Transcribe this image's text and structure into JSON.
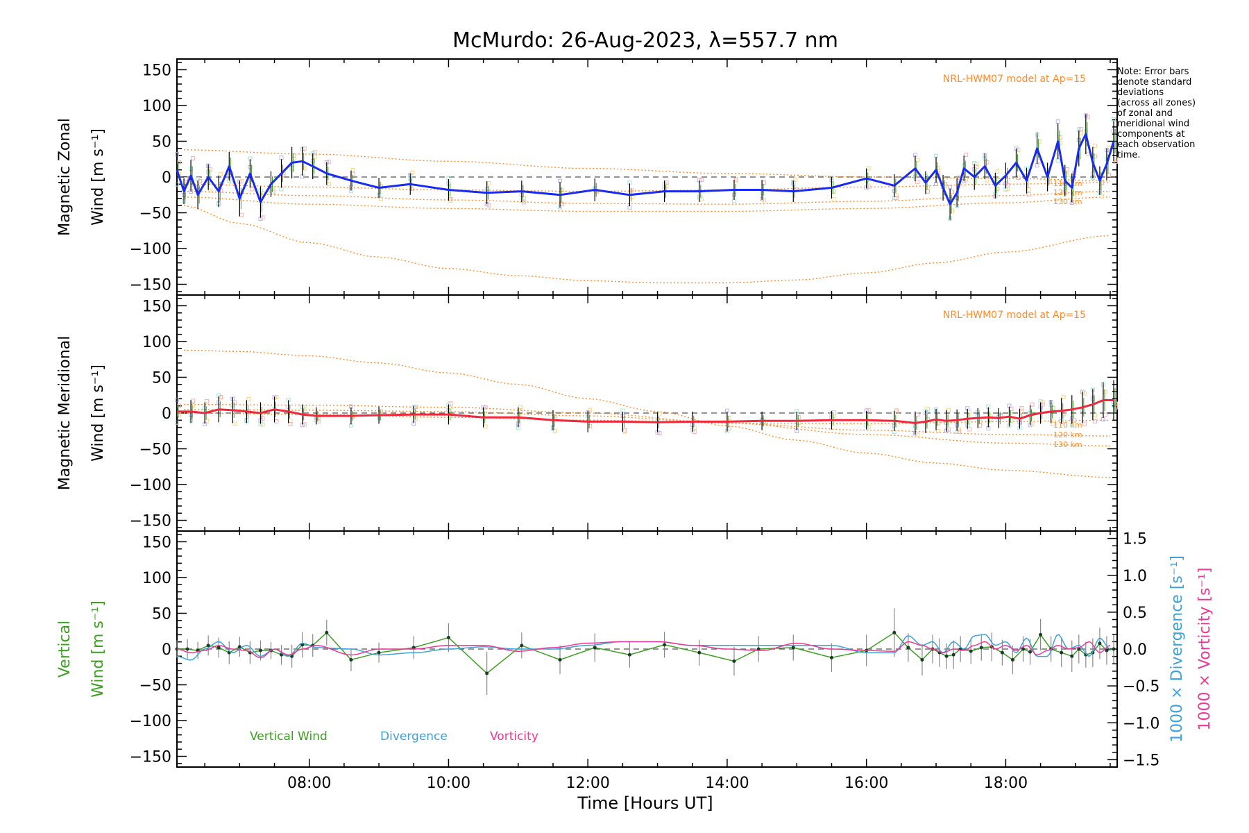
{
  "chart_data": {
    "type": "line",
    "title": "McMurdo: 26-Aug-2023, λ=557.7 nm",
    "xlabel": "Time [Hours UT]",
    "xlim": [
      6.1,
      19.6
    ],
    "x_ticks": [
      8,
      10,
      12,
      14,
      16,
      18
    ],
    "x_tick_labels": [
      "08:00",
      "10:00",
      "12:00",
      "14:00",
      "16:00",
      "18:00"
    ],
    "y_ticks": [
      -150,
      -100,
      -50,
      0,
      50,
      100,
      150
    ],
    "y_tick_labels": [
      "−150",
      "−100",
      "−50",
      "0",
      "50",
      "100",
      "150"
    ],
    "note_lines": [
      "Note: Error bars",
      "denote standard",
      "deviations",
      "(across all zones)",
      "of zonal and",
      "meridional wind",
      "components at",
      "each observation",
      "time."
    ],
    "model_label": "NRL-HWM07 model at Ap=15",
    "model_alt_labels": [
      "110 km",
      "120 km",
      "130 km"
    ],
    "panels": [
      {
        "id": "zonal",
        "ylabel_line1": "Magnetic Zonal",
        "ylabel_line2": "Wind [m s⁻¹]",
        "ylim": [
          -165,
          165
        ],
        "color": "#1a2bf0",
        "times": [
          6.1,
          6.2,
          6.3,
          6.4,
          6.55,
          6.7,
          6.85,
          7.0,
          7.15,
          7.3,
          7.45,
          7.6,
          7.75,
          7.9,
          8.05,
          8.25,
          8.6,
          9.0,
          9.45,
          10.0,
          10.55,
          11.05,
          11.6,
          12.1,
          12.6,
          13.1,
          13.6,
          14.1,
          14.5,
          14.95,
          15.5,
          16.0,
          16.4,
          16.7,
          16.85,
          17.0,
          17.1,
          17.2,
          17.3,
          17.4,
          17.55,
          17.7,
          17.85,
          18.0,
          18.15,
          18.3,
          18.45,
          18.6,
          18.75,
          18.85,
          18.95,
          19.05,
          19.15,
          19.25,
          19.35,
          19.45,
          19.55
        ],
        "values": [
          10,
          -20,
          2,
          -25,
          0,
          -20,
          15,
          -30,
          5,
          -35,
          -10,
          5,
          20,
          22,
          15,
          5,
          -5,
          -15,
          -10,
          -18,
          -22,
          -20,
          -25,
          -18,
          -25,
          -20,
          -20,
          -18,
          -18,
          -20,
          -15,
          -2,
          -12,
          12,
          -8,
          10,
          -15,
          -38,
          -22,
          12,
          0,
          15,
          -12,
          2,
          20,
          -5,
          40,
          0,
          50,
          -5,
          -15,
          40,
          60,
          20,
          -5,
          18,
          50
        ],
        "error_bars": [
          20,
          18,
          22,
          20,
          18,
          22,
          20,
          25,
          20,
          22,
          18,
          20,
          22,
          20,
          18,
          16,
          14,
          14,
          15,
          15,
          16,
          15,
          18,
          16,
          16,
          15,
          15,
          14,
          14,
          15,
          15,
          14,
          16,
          18,
          16,
          18,
          18,
          22,
          20,
          18,
          18,
          18,
          18,
          18,
          20,
          18,
          22,
          20,
          25,
          22,
          20,
          25,
          28,
          22,
          20,
          22,
          28
        ],
        "model_curves": [
          {
            "label": "110 km",
            "times": [
              6.2,
              8,
              10,
              12,
              14,
              16,
              18,
              19.5
            ],
            "values": [
              -10,
              -14,
              -18,
              -20,
              -18,
              -14,
              -10,
              -8
            ]
          },
          {
            "label": "120 km",
            "times": [
              6.2,
              8,
              10,
              12,
              14,
              16,
              18,
              19.5
            ],
            "values": [
              -20,
              -26,
              -32,
              -37,
              -38,
              -34,
              -26,
              -20
            ]
          },
          {
            "label": "130 km",
            "times": [
              6.2,
              8,
              10,
              12,
              14,
              16,
              18,
              19.5
            ],
            "values": [
              -28,
              -38,
              -44,
              -48,
              -48,
              -44,
              -36,
              -28
            ]
          },
          {
            "label": "",
            "times": [
              6.2,
              7,
              8,
              9,
              10,
              11,
              12,
              13,
              14,
              15,
              16,
              17,
              18,
              19.5
            ],
            "values": [
              -40,
              -65,
              -92,
              -112,
              -128,
              -138,
              -145,
              -148,
              -148,
              -144,
              -134,
              -120,
              -105,
              -82
            ]
          },
          {
            "label": "",
            "times": [
              6.2,
              8,
              10,
              12,
              14,
              16,
              18,
              19.5
            ],
            "values": [
              38,
              32,
              22,
              12,
              5,
              0,
              -2,
              -5
            ]
          }
        ]
      },
      {
        "id": "meridional",
        "ylabel_line1": "Magnetic Meridional",
        "ylabel_line2": "Wind [m s⁻¹]",
        "ylim": [
          -165,
          165
        ],
        "color": "#f0283c",
        "times": [
          6.1,
          6.3,
          6.5,
          6.7,
          6.9,
          7.1,
          7.3,
          7.5,
          7.7,
          7.9,
          8.1,
          8.6,
          9.0,
          9.5,
          10.0,
          10.5,
          11.0,
          11.5,
          12.0,
          12.5,
          13.0,
          13.5,
          14.0,
          14.5,
          15.0,
          15.5,
          16.0,
          16.4,
          16.7,
          16.85,
          17.0,
          17.15,
          17.3,
          17.45,
          17.6,
          17.75,
          17.9,
          18.05,
          18.2,
          18.35,
          18.5,
          18.65,
          18.8,
          18.95,
          19.1,
          19.25,
          19.4,
          19.55
        ],
        "values": [
          2,
          2,
          0,
          5,
          4,
          2,
          0,
          5,
          2,
          -2,
          -4,
          -4,
          -3,
          -2,
          -2,
          -6,
          -6,
          -10,
          -12,
          -12,
          -13,
          -12,
          -12,
          -11,
          -11,
          -10,
          -10,
          -11,
          -14,
          -12,
          -9,
          -11,
          -10,
          -8,
          -7,
          -6,
          -7,
          -5,
          -8,
          -3,
          0,
          2,
          3,
          5,
          8,
          12,
          18,
          18
        ],
        "error_bars": [
          15,
          16,
          15,
          18,
          18,
          16,
          15,
          18,
          16,
          14,
          12,
          12,
          12,
          12,
          14,
          14,
          14,
          14,
          15,
          14,
          14,
          14,
          14,
          13,
          13,
          13,
          13,
          14,
          16,
          16,
          15,
          15,
          15,
          14,
          14,
          14,
          14,
          14,
          14,
          14,
          15,
          16,
          18,
          20,
          22,
          22,
          25,
          28
        ],
        "model_curves": [
          {
            "label": "110 km",
            "times": [
              6.2,
              8,
              10,
              12,
              14,
              16,
              18,
              19.5
            ],
            "values": [
              0,
              -2,
              -6,
              -10,
              -14,
              -15,
              -12,
              -10
            ]
          },
          {
            "label": "120 km",
            "times": [
              6.2,
              8,
              10,
              12,
              14,
              16,
              18,
              19.5
            ],
            "values": [
              5,
              4,
              2,
              -4,
              -14,
              -24,
              -30,
              -32
            ]
          },
          {
            "label": "130 km",
            "times": [
              6.2,
              8,
              10,
              12,
              14,
              16,
              18,
              19.5
            ],
            "values": [
              12,
              11,
              8,
              0,
              -14,
              -30,
              -42,
              -46
            ]
          },
          {
            "label": "",
            "times": [
              6.2,
              7,
              8,
              9,
              10,
              11,
              12,
              13,
              14,
              15,
              16,
              17,
              18,
              19.5
            ],
            "values": [
              88,
              86,
              80,
              70,
              56,
              40,
              20,
              2,
              -18,
              -38,
              -56,
              -70,
              -80,
              -90
            ]
          }
        ]
      },
      {
        "id": "vertical",
        "ylabel_line1": "Vertical",
        "ylabel_line2": "Wind [m s⁻¹]",
        "ylim": [
          -165,
          165
        ],
        "right_ylim": [
          -1.6,
          1.6
        ],
        "right_ticks": [
          -1.5,
          -1.0,
          -0.5,
          0.0,
          0.5,
          1.0,
          1.5
        ],
        "right_tick_labels": [
          "−1.5",
          "−1.0",
          "−0.5",
          "0.0",
          "0.5",
          "1.0",
          "1.5"
        ],
        "right_label_divergence": "1000 × Divergence [s⁻¹]",
        "right_label_vorticity": "1000 × Vorticity [s⁻¹]",
        "legend": [
          "Vertical Wind",
          "Divergence",
          "Vorticity"
        ],
        "series": [
          {
            "name": "Vertical Wind",
            "color": "#3aa01e",
            "times": [
              6.1,
              6.25,
              6.4,
              6.55,
              6.7,
              6.85,
              7.0,
              7.15,
              7.3,
              7.45,
              7.6,
              7.75,
              7.9,
              8.05,
              8.25,
              8.6,
              9.0,
              9.5,
              10.0,
              10.55,
              11.05,
              11.6,
              12.1,
              12.6,
              13.1,
              13.6,
              14.1,
              14.45,
              14.95,
              15.5,
              16.0,
              16.4,
              16.6,
              16.8,
              16.95,
              17.05,
              17.15,
              17.25,
              17.35,
              17.5,
              17.65,
              17.8,
              17.95,
              18.1,
              18.25,
              18.35,
              18.5,
              18.65,
              18.8,
              18.95,
              19.05,
              19.15,
              19.25,
              19.35,
              19.45,
              19.55
            ],
            "values": [
              0,
              0,
              -2,
              5,
              2,
              -5,
              3,
              -5,
              -2,
              -2,
              -8,
              -10,
              6,
              5,
              23,
              -15,
              -5,
              2,
              16,
              -34,
              5,
              -15,
              2,
              -8,
              6,
              -5,
              -17,
              0,
              2,
              -12,
              -2,
              23,
              2,
              -15,
              0,
              -5,
              -10,
              -8,
              0,
              -3,
              2,
              3,
              -5,
              -15,
              0,
              -4,
              20,
              0,
              -5,
              -10,
              0,
              -8,
              -5,
              8,
              -2,
              0
            ],
            "error_bars": [
              12,
              14,
              12,
              14,
              14,
              16,
              14,
              16,
              14,
              12,
              14,
              16,
              18,
              16,
              18,
              16,
              14,
              16,
              20,
              30,
              18,
              20,
              20,
              18,
              18,
              18,
              20,
              18,
              18,
              20,
              22,
              34,
              20,
              22,
              20,
              20,
              18,
              20,
              18,
              18,
              18,
              20,
              18,
              20,
              18,
              18,
              22,
              18,
              20,
              22,
              20,
              18,
              20,
              22,
              20,
              20
            ]
          },
          {
            "name": "Divergence",
            "color": "#3ea2d8",
            "times": [
              6.1,
              6.3,
              6.5,
              6.7,
              6.9,
              7.1,
              7.3,
              7.5,
              7.7,
              7.9,
              8.1,
              8.6,
              9.0,
              9.5,
              10.0,
              10.5,
              11.0,
              11.5,
              12.0,
              12.5,
              13.0,
              13.5,
              14.0,
              14.5,
              15.0,
              15.5,
              16.0,
              16.4,
              16.6,
              16.8,
              16.95,
              17.1,
              17.25,
              17.4,
              17.55,
              17.7,
              17.85,
              18.0,
              18.15,
              18.3,
              18.45,
              18.6,
              18.75,
              18.9,
              19.05,
              19.2,
              19.35,
              19.5
            ],
            "values": [
              -0.1,
              -0.15,
              0.0,
              0.1,
              -0.05,
              0.05,
              -0.1,
              0.0,
              -0.1,
              0.08,
              0.02,
              0.0,
              -0.08,
              -0.05,
              0.0,
              0.03,
              0.0,
              0.0,
              0.05,
              0.1,
              0.1,
              0.05,
              0.05,
              0.05,
              0.05,
              0.05,
              -0.05,
              -0.05,
              0.18,
              0.05,
              0.1,
              -0.05,
              0.1,
              0.0,
              0.18,
              0.2,
              0.05,
              0.1,
              -0.05,
              0.15,
              -0.1,
              -0.1,
              0.2,
              0.0,
              0.05,
              -0.1,
              0.15,
              0.0
            ]
          },
          {
            "name": "Vorticity",
            "color": "#ec3a94",
            "times": [
              6.1,
              6.3,
              6.5,
              6.7,
              6.9,
              7.1,
              7.3,
              7.5,
              7.7,
              7.9,
              8.1,
              8.6,
              9.0,
              9.5,
              10.0,
              10.5,
              11.0,
              11.5,
              12.0,
              12.5,
              13.0,
              13.5,
              14.0,
              14.5,
              15.0,
              15.5,
              16.0,
              16.4,
              16.6,
              16.8,
              16.95,
              17.1,
              17.25,
              17.4,
              17.55,
              17.7,
              17.85,
              18.0,
              18.15,
              18.3,
              18.45,
              18.6,
              18.75,
              18.9,
              19.05,
              19.2,
              19.35,
              19.5
            ],
            "values": [
              0.0,
              -0.05,
              -0.02,
              0.05,
              0.0,
              -0.02,
              -0.12,
              0.0,
              -0.08,
              0.0,
              0.05,
              -0.08,
              0.0,
              0.0,
              0.05,
              0.05,
              -0.03,
              0.02,
              0.08,
              0.1,
              0.1,
              0.05,
              0.0,
              -0.02,
              0.08,
              0.0,
              -0.02,
              -0.03,
              0.1,
              0.05,
              0.0,
              -0.05,
              0.0,
              -0.02,
              0.05,
              0.1,
              0.0,
              0.05,
              -0.02,
              0.05,
              -0.08,
              -0.02,
              0.05,
              0.0,
              0.02,
              0.1,
              -0.05,
              0.05
            ]
          }
        ]
      }
    ]
  }
}
